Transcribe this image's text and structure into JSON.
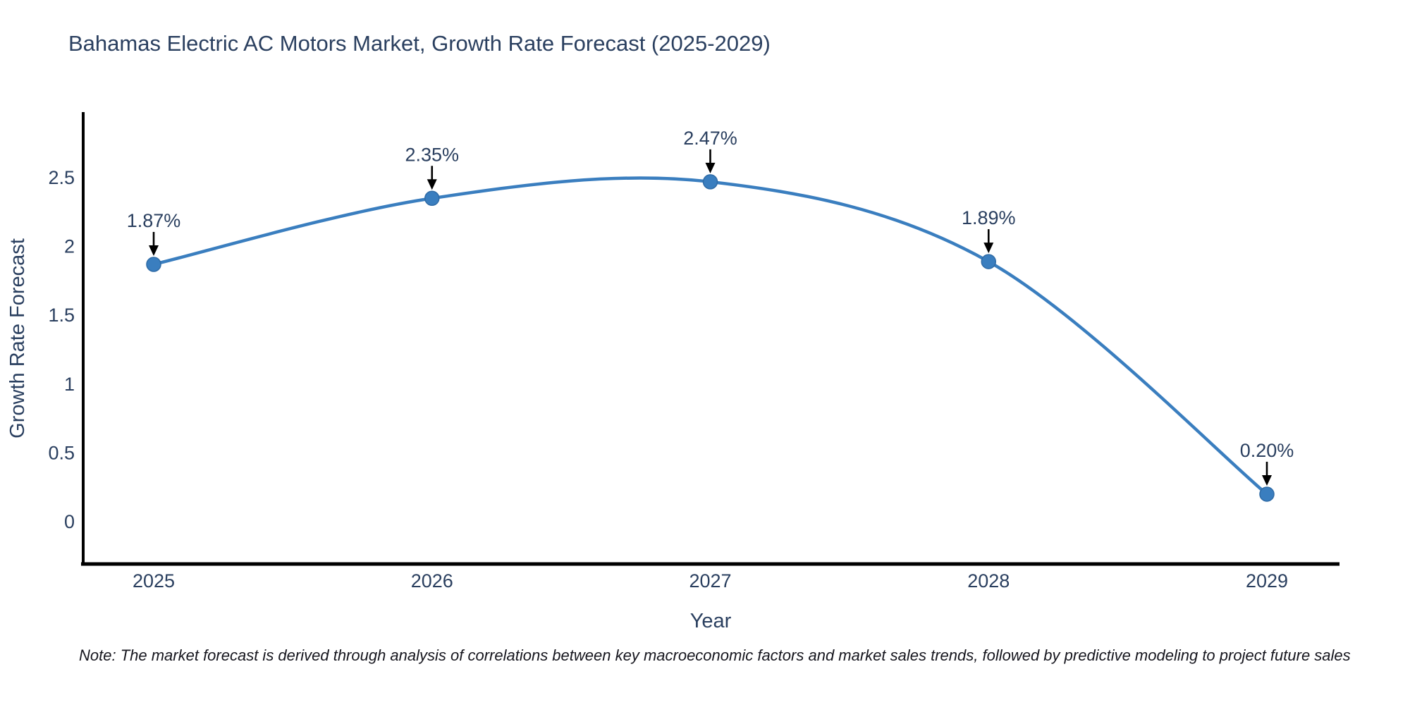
{
  "chart_data": {
    "type": "line",
    "title": "Bahamas Electric AC Motors Market, Growth Rate Forecast (2025-2029)",
    "xlabel": "Year",
    "ylabel": "Growth Rate Forecast",
    "categories": [
      "2025",
      "2026",
      "2027",
      "2028",
      "2029"
    ],
    "series": [
      {
        "name": "Growth Rate Forecast",
        "values": [
          1.87,
          2.35,
          2.47,
          1.89,
          0.2
        ]
      }
    ],
    "point_labels": [
      "1.87%",
      "2.35%",
      "2.47%",
      "1.89%",
      "0.20%"
    ],
    "ytick_labels": [
      "0",
      "0.5",
      "1",
      "1.5",
      "2",
      "2.5"
    ],
    "ytick_values": [
      0,
      0.5,
      1,
      1.5,
      2,
      2.5
    ],
    "ylim": [
      -0.31,
      2.98
    ],
    "line_shape": "spline",
    "grid": false,
    "legend_position": "none",
    "colors": {
      "line": "#3a7ebf",
      "marker": "#3a7ebf",
      "axis": "#000000",
      "text": "#2a3f5f",
      "arrow": "#000000"
    }
  },
  "note": {
    "text": "Note: The market forecast is derived through analysis of correlations between key macroeconomic factors and market sales trends, followed by predictive modeling to project future sales"
  }
}
